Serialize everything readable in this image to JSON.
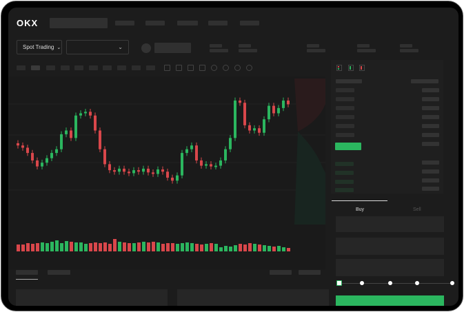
{
  "header": {
    "logo": "OKX"
  },
  "toolbar": {
    "market_select": "Spot Trading",
    "pair_select": ""
  },
  "order_form": {
    "tabs": [
      "Buy",
      "Sell"
    ],
    "active_tab": "Buy",
    "leverage_slider_value": 0
  },
  "colors": {
    "up": "#2bb65f",
    "down": "#d9474b",
    "background": "#1c1c1c"
  },
  "chart_data": {
    "type": "candlestick",
    "close": [
      55,
      52,
      45,
      35,
      27,
      32,
      38,
      45,
      50,
      70,
      75,
      65,
      95,
      98,
      100,
      95,
      75,
      50,
      30,
      22,
      20,
      24,
      20,
      18,
      22,
      20,
      24,
      19,
      17,
      23,
      20,
      12,
      8,
      15,
      45,
      50,
      55,
      35,
      28,
      30,
      27,
      28,
      35,
      50,
      65,
      115,
      112,
      82,
      75,
      78,
      72,
      90,
      108,
      98,
      105,
      115,
      110
    ],
    "volume": [
      10,
      10,
      12,
      11,
      12,
      13,
      12,
      14,
      16,
      12,
      15,
      14,
      13,
      13,
      11,
      12,
      13,
      12,
      13,
      11,
      18,
      14,
      13,
      12,
      12,
      13,
      14,
      13,
      14,
      13,
      11,
      12,
      12,
      11,
      12,
      13,
      12,
      11,
      10,
      11,
      12,
      11,
      6,
      8,
      7,
      9,
      11,
      10,
      12,
      11,
      10,
      9,
      8,
      7,
      8,
      6,
      5
    ]
  }
}
